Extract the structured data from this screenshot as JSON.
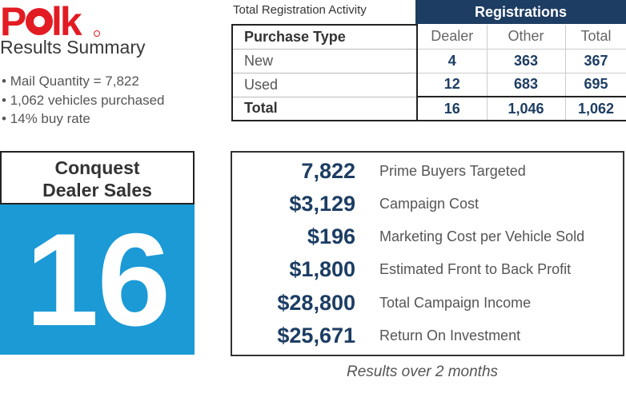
{
  "logo": {
    "text": "POLK",
    "icon": "polk-logo-icon",
    "color": "#e31b23"
  },
  "summary": {
    "title": "Results Summary",
    "bullets": [
      "Mail Quantity = 7,822",
      "1,062 vehicles purchased",
      "14% buy rate"
    ]
  },
  "registration": {
    "caption": "Total Registration Activity",
    "header": "Registrations",
    "columns": [
      "Purchase Type",
      "Dealer",
      "Other",
      "Total"
    ],
    "rows": [
      {
        "type": "New",
        "dealer": "4",
        "other": "363",
        "total": "367"
      },
      {
        "type": "Used",
        "dealer": "12",
        "other": "683",
        "total": "695"
      },
      {
        "type": "Total",
        "dealer": "16",
        "other": "1,046",
        "total": "1,062"
      }
    ]
  },
  "conquest": {
    "label_line1": "Conquest",
    "label_line2": "Dealer Sales",
    "value": "16"
  },
  "metrics": [
    {
      "value": "7,822",
      "label": "Prime Buyers Targeted"
    },
    {
      "value": "$3,129",
      "label": "Campaign Cost"
    },
    {
      "value": "$196",
      "label": "Marketing Cost per Vehicle Sold"
    },
    {
      "value": "$1,800",
      "label": "Estimated Front to Back Profit"
    },
    {
      "value": "$28,800",
      "label": "Total Campaign Income"
    },
    {
      "value": "$25,671",
      "label": "Return On Investment"
    }
  ],
  "footnote": "Results over 2 months",
  "colors": {
    "navy": "#1d3d63",
    "blue": "#1b9ad6",
    "red": "#e31b23"
  }
}
